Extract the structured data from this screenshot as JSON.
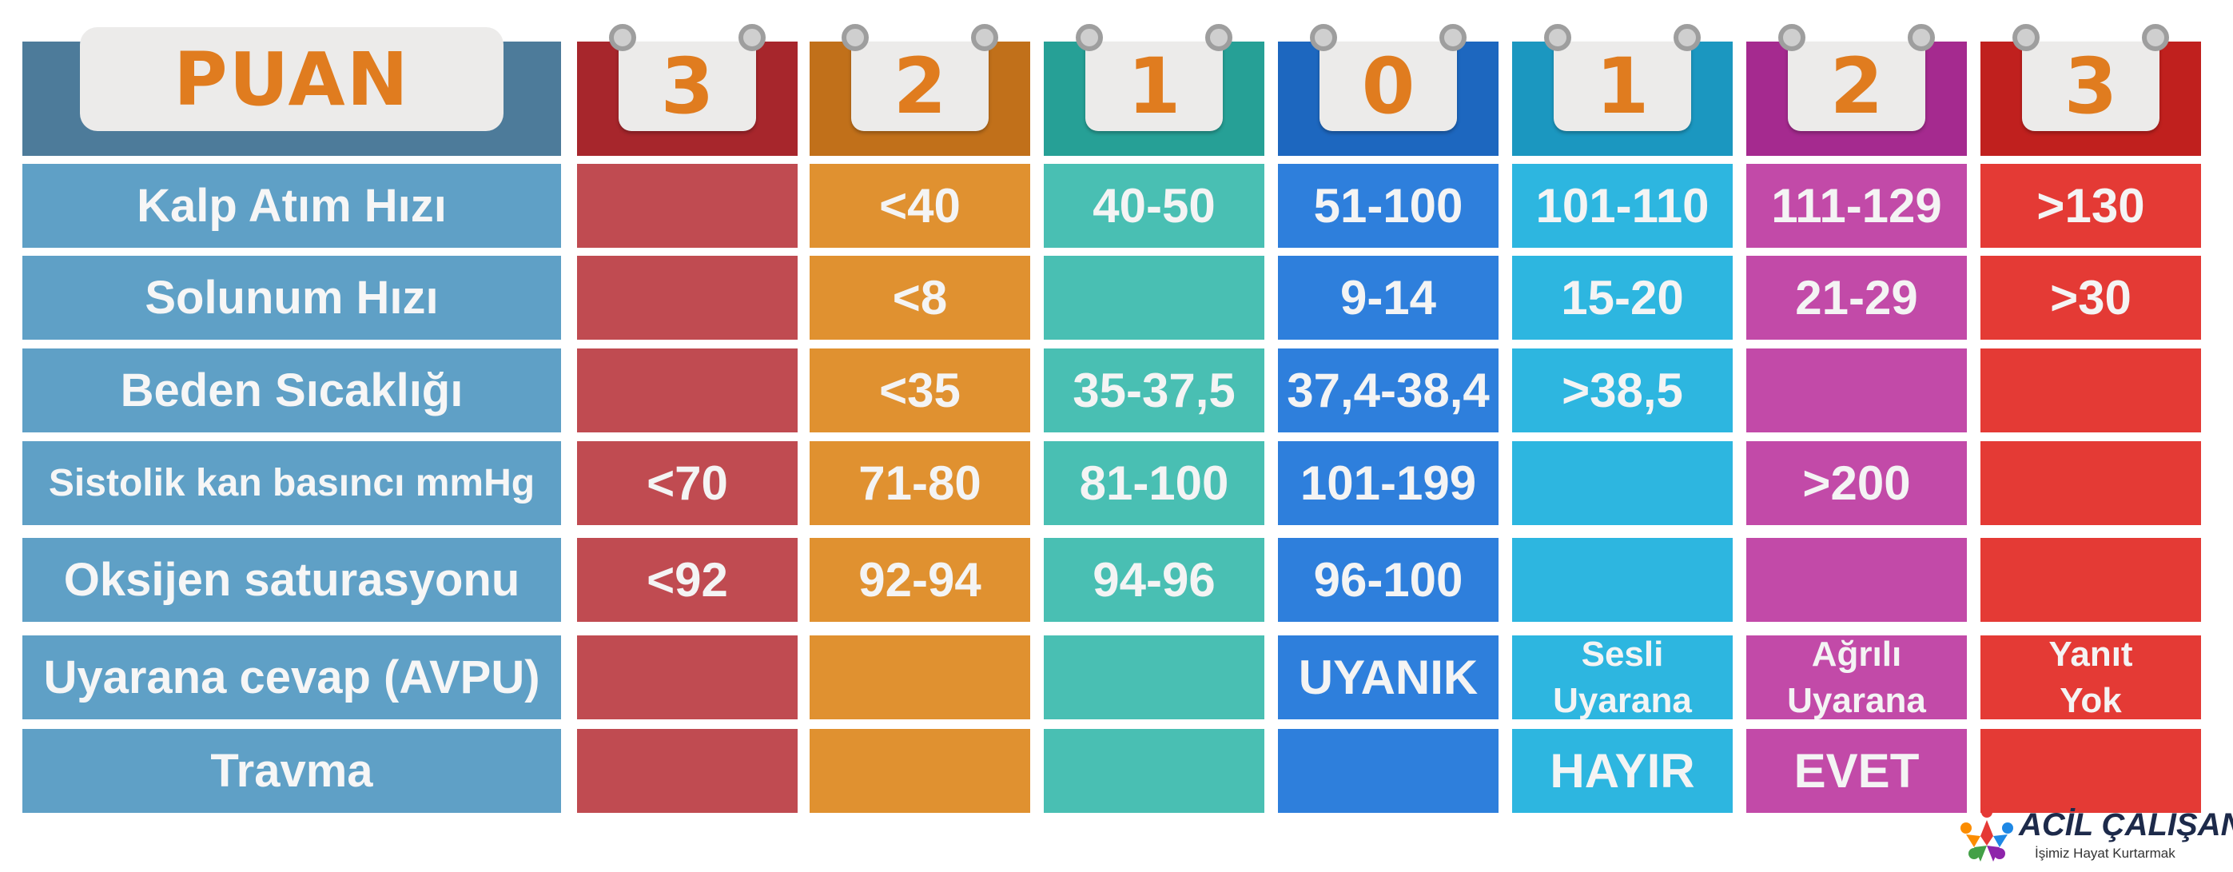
{
  "header": {
    "puan_label": "PUAN",
    "scores": [
      "3",
      "2",
      "1",
      "0",
      "1",
      "2",
      "3"
    ]
  },
  "colors": {
    "header_label_bg": "#4d7b9a",
    "header_label_text": "#e07c1f",
    "row_label_bg": "#5fa0c6",
    "columns": [
      {
        "header": "#a7262c",
        "cell": "#c04b51",
        "num": "#e07c1f"
      },
      {
        "header": "#c1701a",
        "cell": "#e09130",
        "num": "#e07c1f"
      },
      {
        "header": "#26a096",
        "cell": "#49bfb3",
        "num": "#e07c1f"
      },
      {
        "header": "#1d67bf",
        "cell": "#2e7fdc",
        "num": "#e07c1f"
      },
      {
        "header": "#1b97c0",
        "cell": "#2db6e0",
        "num": "#e07c1f"
      },
      {
        "header": "#a52a8f",
        "cell": "#c24aa8",
        "num": "#e07c1f"
      },
      {
        "header": "#c0201e",
        "cell": "#e43a35",
        "num": "#e07c1f"
      }
    ]
  },
  "rows": [
    {
      "label": "Kalp Atım Hızı",
      "values": [
        "",
        "<40",
        "40-50",
        "51-100",
        "101-110",
        "111-129",
        ">130"
      ]
    },
    {
      "label": "Solunum Hızı",
      "values": [
        "",
        "<8",
        "",
        "9-14",
        "15-20",
        "21-29",
        ">30"
      ]
    },
    {
      "label": "Beden Sıcaklığı",
      "values": [
        "",
        "<35",
        "35-37,5",
        "37,4-38,4",
        ">38,5",
        "",
        ""
      ]
    },
    {
      "label": "Sistolik kan basıncı mmHg",
      "values": [
        "<70",
        "71-80",
        "81-100",
        "101-199",
        "",
        ">200",
        ""
      ]
    },
    {
      "label": "Oksijen saturasyonu",
      "values": [
        "<92",
        "92-94",
        "94-96",
        "96-100",
        "",
        "",
        ""
      ]
    },
    {
      "label": "Uyarana cevap (AVPU)",
      "values": [
        "",
        "",
        "",
        "UYANIK",
        "Sesli\nUyarana",
        "Ağrılı\nUyarana",
        "Yanıt\nYok"
      ]
    },
    {
      "label": "Travma",
      "values": [
        "",
        "",
        "",
        "",
        "HAYIR",
        "EVET",
        ""
      ]
    }
  ],
  "logo": {
    "title": "ACİL ÇALIŞANLARI",
    "subtitle": "İşimiz Hayat Kurtarmak",
    "icon": "people-star-logo-icon"
  }
}
